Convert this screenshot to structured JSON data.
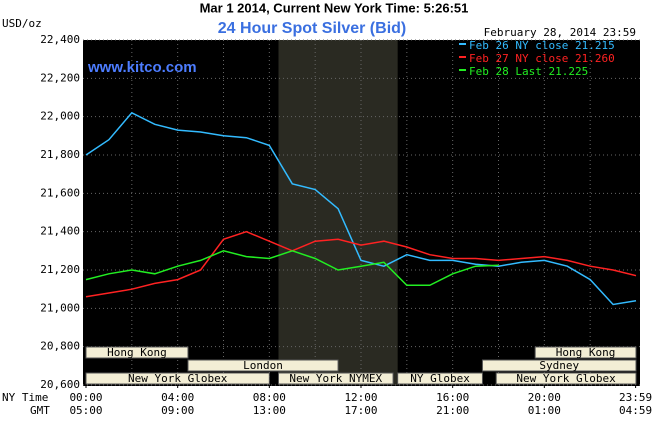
{
  "chart_data": {
    "type": "line",
    "page_title": "Mar 1 2014, Current New York Time: 5:26:51",
    "title": "24 Hour Spot Silver (Bid)",
    "watermark": "www.kitco.com",
    "timestamp": "February 28, 2014 23:59",
    "ylabel": "USD/oz",
    "x_row_label": "NY Time",
    "x2_row_label": "GMT",
    "x": [
      0,
      1,
      2,
      3,
      4,
      5,
      6,
      7,
      8,
      9,
      10,
      11,
      12,
      13,
      14,
      15,
      16,
      17,
      18,
      19,
      20,
      21,
      22,
      23,
      24
    ],
    "series": [
      {
        "name": "Feb 26 NY close 21.215",
        "color": "#33bbff",
        "values": [
          21.8,
          21.88,
          22.02,
          21.96,
          21.93,
          21.92,
          21.9,
          21.89,
          21.85,
          21.65,
          21.62,
          21.52,
          21.25,
          21.22,
          21.28,
          21.25,
          21.25,
          21.23,
          21.22,
          21.24,
          21.25,
          21.22,
          21.15,
          21.02,
          21.04
        ]
      },
      {
        "name": "Feb 27 NY close 21.260",
        "color": "#ff2222",
        "values": [
          21.06,
          21.08,
          21.1,
          21.13,
          21.15,
          21.2,
          21.36,
          21.4,
          21.35,
          21.3,
          21.35,
          21.36,
          21.33,
          21.35,
          21.32,
          21.28,
          21.26,
          21.26,
          21.25,
          21.26,
          21.27,
          21.25,
          21.22,
          21.2,
          21.17
        ]
      },
      {
        "name": "Feb 28 Last 21.225",
        "color": "#22ee22",
        "values": [
          21.15,
          21.18,
          21.2,
          21.18,
          21.22,
          21.25,
          21.3,
          21.27,
          21.26,
          21.3,
          21.26,
          21.2,
          21.22,
          21.24,
          21.12,
          21.12,
          21.18,
          21.22,
          21.225,
          null,
          null,
          null,
          null,
          null,
          null
        ]
      }
    ],
    "xlim": [
      0,
      24
    ],
    "ylim": [
      20.6,
      22.4
    ],
    "yticks": [
      {
        "value": 20.6,
        "label": "20,600"
      },
      {
        "value": 20.8,
        "label": "20,800"
      },
      {
        "value": 21.0,
        "label": "21,000"
      },
      {
        "value": 21.2,
        "label": "21,200"
      },
      {
        "value": 21.4,
        "label": "21,400"
      },
      {
        "value": 21.6,
        "label": "21,600"
      },
      {
        "value": 21.8,
        "label": "21,800"
      },
      {
        "value": 22.0,
        "label": "22,000"
      },
      {
        "value": 22.2,
        "label": "22,200"
      },
      {
        "value": 22.4,
        "label": "22,400"
      }
    ],
    "xticks": [
      {
        "value": 0,
        "label": "00:00"
      },
      {
        "value": 4,
        "label": "04:00"
      },
      {
        "value": 8,
        "label": "08:00"
      },
      {
        "value": 12,
        "label": "12:00"
      },
      {
        "value": 16,
        "label": "16:00"
      },
      {
        "value": 20,
        "label": "20:00"
      },
      {
        "value": 23.983,
        "label": "23:59"
      }
    ],
    "x2ticks": [
      {
        "value": 0,
        "label": "05:00"
      },
      {
        "value": 4,
        "label": "09:00"
      },
      {
        "value": 8,
        "label": "13:00"
      },
      {
        "value": 12,
        "label": "17:00"
      },
      {
        "value": 16,
        "label": "21:00"
      },
      {
        "value": 20,
        "label": "01:00"
      },
      {
        "value": 23.983,
        "label": "04:59"
      }
    ],
    "grid_x": [
      2,
      4,
      6,
      8,
      10,
      12,
      14,
      16,
      18,
      20,
      22
    ],
    "shade": [
      8.4,
      13.6
    ],
    "session_rows": [
      [
        {
          "name": "Hong Kong",
          "start": 0,
          "end": 4.45
        },
        {
          "name": "Hong Kong",
          "start": 19.6,
          "end": 24
        }
      ],
      [
        {
          "name": "London",
          "start": 4.45,
          "end": 11
        },
        {
          "name": "Sydney",
          "start": 17.3,
          "end": 24
        }
      ],
      [
        {
          "name": "New York Globex",
          "start": 0,
          "end": 8.0
        },
        {
          "name": "New York NYMEX",
          "start": 8.4,
          "end": 13.4
        },
        {
          "name": "NY Globex",
          "start": 13.6,
          "end": 17.3
        },
        {
          "name": "New York Globex",
          "start": 17.9,
          "end": 24
        }
      ]
    ]
  }
}
